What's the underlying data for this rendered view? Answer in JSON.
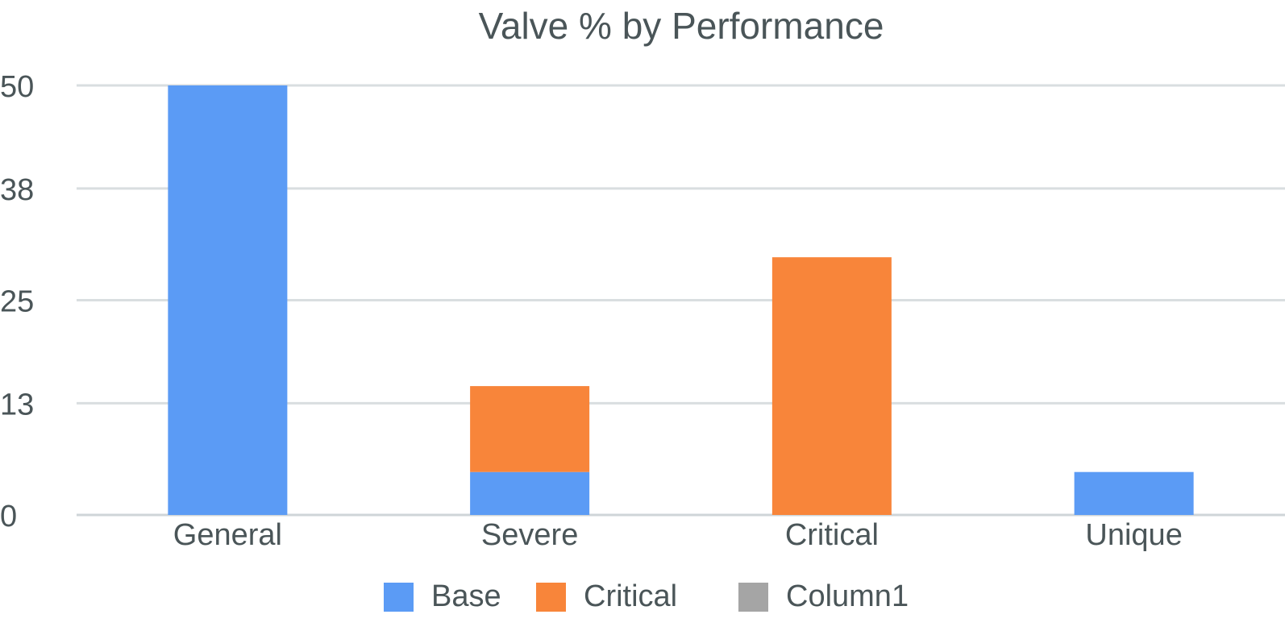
{
  "chart_data": {
    "type": "bar",
    "stacked": true,
    "title": "Valve % by Performance",
    "xlabel": "",
    "ylabel": "",
    "categories": [
      "General",
      "Severe",
      "Critical",
      "Unique"
    ],
    "series": [
      {
        "name": "Base",
        "color": "#5b9bf5",
        "values": [
          50,
          5,
          0,
          5
        ]
      },
      {
        "name": "Critical",
        "color": "#f8853a",
        "values": [
          0,
          10,
          30,
          0
        ]
      },
      {
        "name": "Column1",
        "color": "#a5a5a5",
        "values": [
          0,
          0,
          0,
          0
        ]
      }
    ],
    "yticks": [
      "0",
      "13",
      "25",
      "38",
      "50"
    ],
    "ylim": [
      0,
      50
    ],
    "grid": true,
    "legend_position": "bottom"
  },
  "colors": {
    "title": "#4a5558",
    "tick_text": "#4a5558",
    "grid": "#d9dee0",
    "axis": "#cfd5d8"
  }
}
